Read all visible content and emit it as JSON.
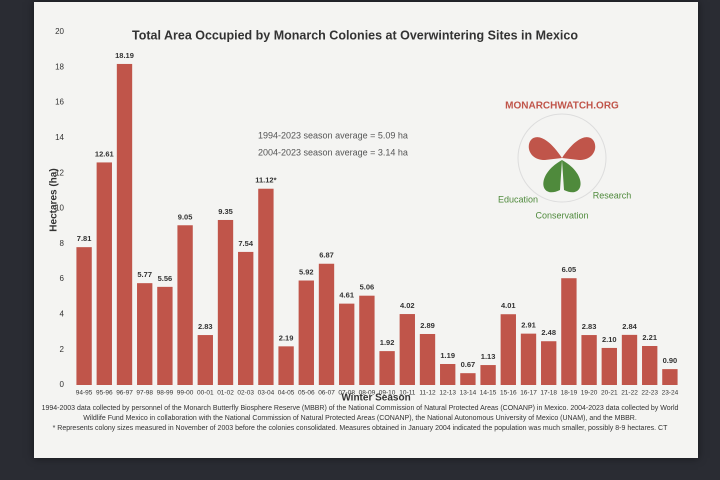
{
  "chart_data": {
    "type": "bar",
    "title": "Total Area Occupied by Monarch Colonies at Overwintering Sites in Mexico",
    "y_label": "Hectares (ha)",
    "x_label": "Winter Season",
    "categories": [
      "94-95",
      "95-96",
      "96-97",
      "97-98",
      "98-99",
      "99-00",
      "00-01",
      "01-02",
      "02-03",
      "03-04",
      "04-05",
      "05-06",
      "06-07",
      "07-08",
      "08-09",
      "09-10",
      "10-11",
      "11-12",
      "12-13",
      "13-14",
      "14-15",
      "15-16",
      "16-17",
      "17-18",
      "18-19",
      "19-20",
      "20-21",
      "21-22",
      "22-23",
      "23-24"
    ],
    "values": [
      7.81,
      12.61,
      18.19,
      5.77,
      5.56,
      9.05,
      2.83,
      9.35,
      7.54,
      11.12,
      2.19,
      5.92,
      6.87,
      4.61,
      5.06,
      1.92,
      4.02,
      2.89,
      1.19,
      0.67,
      1.13,
      4.01,
      2.91,
      2.48,
      6.05,
      2.83,
      2.1,
      2.84,
      2.21,
      0.9
    ],
    "value_labels": [
      "7.81",
      "12.61",
      "18.19",
      "5.77",
      "5.56",
      "9.05",
      "2.83",
      "9.35",
      "7.54",
      "11.12*",
      "2.19",
      "5.92",
      "6.87",
      "4.61",
      "5.06",
      "1.92",
      "4.02",
      "2.89",
      "1.19",
      "0.67",
      "1.13",
      "4.01",
      "2.91",
      "2.48",
      "6.05",
      "2.83",
      "2.10",
      "2.84",
      "2.21",
      "0.90"
    ],
    "color": "#c0554a",
    "ylim": [
      0,
      20
    ],
    "yticks": [
      0,
      2,
      4,
      6,
      8,
      10,
      12,
      14,
      16,
      18,
      20
    ],
    "grid": false,
    "annotations": [
      "1994-2023 season average = 5.09 ha",
      "2004-2023 season average = 3.14 ha"
    ],
    "logo": [
      "MONARCHWATCH.ORG",
      "Education",
      "Conservation",
      "Research"
    ],
    "notes": [
      "1994-2003 data collected by personnel of the Monarch Butterfly Biosphere Reserve (MBBR) of the National Commission of Natural Protected Areas (CONANP) in Mexico. 2004-2023 data collected by World Wildlife Fund Mexico in collaboration with the National Commission of Natural Protected Areas (CONANP), the National Autonomous University of Mexico (UNAM), and the MBBR.",
      "* Represents colony sizes measured in November of 2003 before the colonies consolidated. Measures obtained in January 2004 indicated the population was much smaller, possibly 8-9 hectares. CT"
    ]
  }
}
